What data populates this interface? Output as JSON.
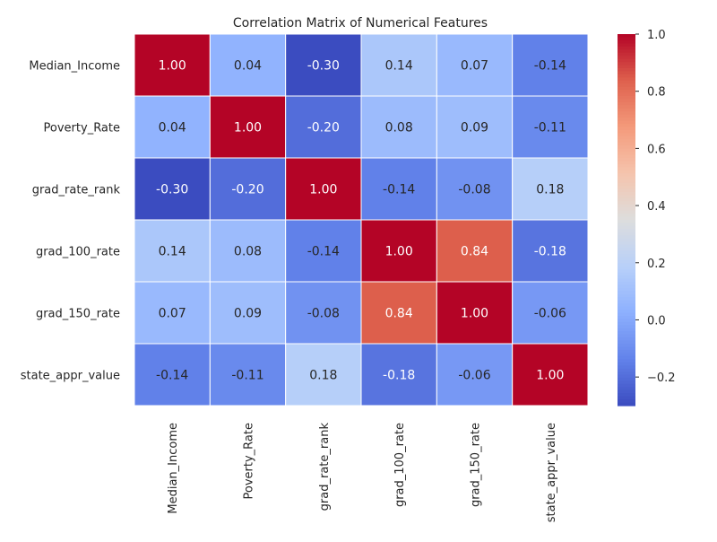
{
  "chart_data": {
    "type": "heatmap",
    "title": "Correlation Matrix of Numerical Features",
    "row_labels": [
      "Median_Income",
      "Poverty_Rate",
      "grad_rate_rank",
      "grad_100_rate",
      "grad_150_rate",
      "state_appr_value"
    ],
    "col_labels": [
      "Median_Income",
      "Poverty_Rate",
      "grad_rate_rank",
      "grad_100_rate",
      "grad_150_rate",
      "state_appr_value"
    ],
    "values": [
      [
        1.0,
        0.04,
        -0.3,
        0.14,
        0.07,
        -0.14
      ],
      [
        0.04,
        1.0,
        -0.2,
        0.08,
        0.09,
        -0.11
      ],
      [
        -0.3,
        -0.2,
        1.0,
        -0.14,
        -0.08,
        0.18
      ],
      [
        0.14,
        0.08,
        -0.14,
        1.0,
        0.84,
        -0.18
      ],
      [
        0.07,
        0.09,
        -0.08,
        0.84,
        1.0,
        -0.06
      ],
      [
        -0.14,
        -0.11,
        0.18,
        -0.18,
        -0.06,
        1.0
      ]
    ],
    "annotations": [
      [
        "1.00",
        "0.04",
        "-0.30",
        "0.14",
        "0.07",
        "-0.14"
      ],
      [
        "0.04",
        "1.00",
        "-0.20",
        "0.08",
        "0.09",
        "-0.11"
      ],
      [
        "-0.30",
        "-0.20",
        "1.00",
        "-0.14",
        "-0.08",
        "0.18"
      ],
      [
        "0.14",
        "0.08",
        "-0.14",
        "1.00",
        "0.84",
        "-0.18"
      ],
      [
        "0.07",
        "0.09",
        "-0.08",
        "0.84",
        "1.00",
        "-0.06"
      ],
      [
        "-0.14",
        "-0.11",
        "0.18",
        "-0.18",
        "-0.06",
        "1.00"
      ]
    ],
    "colormap": "coolwarm",
    "colorbar": {
      "range": [
        -0.3,
        1.0
      ],
      "ticks": [
        1.0,
        0.8,
        0.6,
        0.4,
        0.2,
        0.0,
        -0.2
      ],
      "tick_labels": [
        "1.0",
        "0.8",
        "0.6",
        "0.4",
        "0.2",
        "0.0",
        "−0.2"
      ]
    },
    "grid": false
  }
}
